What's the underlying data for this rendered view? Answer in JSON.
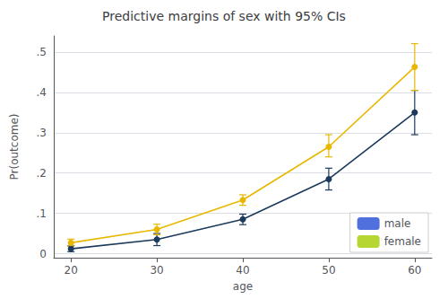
{
  "chart_data": {
    "type": "line",
    "title": "Predictive margins of sex with 95% CIs",
    "xlabel": "age",
    "ylabel": "Pr(outcome)",
    "x": [
      20,
      30,
      40,
      50,
      60
    ],
    "series": [
      {
        "name": "male",
        "color": "#1b3a5c",
        "values": [
          0.012,
          0.035,
          0.085,
          0.185,
          0.35
        ],
        "ci_lo": [
          0.005,
          0.02,
          0.072,
          0.158,
          0.295
        ],
        "ci_hi": [
          0.019,
          0.05,
          0.098,
          0.212,
          0.405
        ]
      },
      {
        "name": "female",
        "color": "#e8b800",
        "values": [
          0.027,
          0.06,
          0.133,
          0.265,
          0.463
        ],
        "ci_lo": [
          0.018,
          0.047,
          0.12,
          0.24,
          0.405
        ],
        "ci_hi": [
          0.036,
          0.073,
          0.146,
          0.295,
          0.521
        ]
      }
    ],
    "xlim": [
      18,
      62
    ],
    "xticks": [
      20,
      30,
      40,
      50,
      60
    ],
    "ylim": [
      -0.01,
      0.54
    ],
    "yticks": [
      0,
      {
        "value": 0.1,
        "label": ".1"
      },
      {
        "value": 0.2,
        "label": ".2"
      },
      {
        "value": 0.3,
        "label": ".3"
      },
      {
        "value": 0.4,
        "label": ".4"
      },
      {
        "value": 0.5,
        "label": ".5"
      }
    ],
    "grid": true,
    "legend": "lower right",
    "marker": "o"
  }
}
